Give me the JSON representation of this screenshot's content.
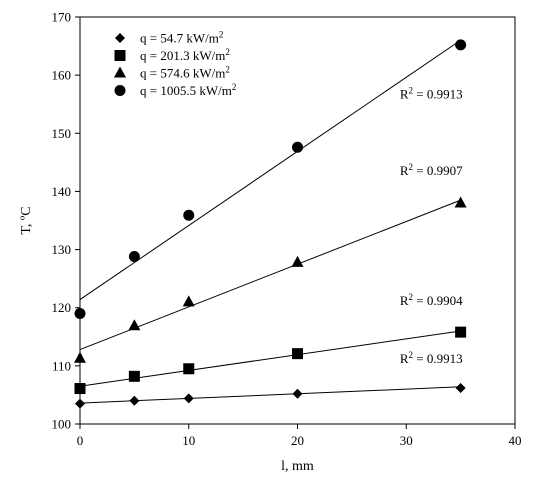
{
  "chart_data": {
    "type": "scatter",
    "xlabel": "l, mm",
    "ylabel": "T, ºC",
    "xlim": [
      0,
      40
    ],
    "ylim": [
      100,
      170
    ],
    "xticks": [
      0,
      10,
      20,
      30,
      40
    ],
    "yticks": [
      100,
      110,
      120,
      130,
      140,
      150,
      160,
      170
    ],
    "grid": false,
    "legend_position": "top-left",
    "series": [
      {
        "name": "q = 54.7 kW/m2",
        "legend_parts": [
          "q = 54.7 kW/m",
          "2"
        ],
        "marker": "diamond",
        "x": [
          0,
          5,
          10,
          20,
          35
        ],
        "y": [
          103.5,
          104.0,
          104.4,
          105.2,
          106.2
        ],
        "trendline": {
          "y0": 103.6,
          "y35": 106.4
        },
        "r2": "0.9913",
        "r2_anchor": [
          35,
          110.5
        ]
      },
      {
        "name": "q = 201.3 kW/m2",
        "legend_parts": [
          "q = 201.3 kW/m",
          "2"
        ],
        "marker": "square",
        "x": [
          0,
          5,
          10,
          20,
          35
        ],
        "y": [
          106.1,
          108.2,
          109.5,
          112.1,
          115.8
        ],
        "trendline": {
          "y0": 106.5,
          "y35": 116.0
        },
        "r2": "0.9904",
        "r2_anchor": [
          35,
          120.5
        ]
      },
      {
        "name": "q = 574.6 kW/m2",
        "legend_parts": [
          "q = 574.6 kW/m",
          "2"
        ],
        "marker": "triangle",
        "x": [
          0,
          5,
          10,
          20,
          35
        ],
        "y": [
          111.3,
          116.9,
          121.0,
          127.8,
          138.0
        ],
        "trendline": {
          "y0": 112.8,
          "y35": 138.5
        },
        "r2": "0.9907",
        "r2_anchor": [
          35,
          142.8
        ]
      },
      {
        "name": "q = 1005.5 kW/m2",
        "legend_parts": [
          "q = 1005.5 kW/m",
          "2"
        ],
        "marker": "circle",
        "x": [
          0,
          5,
          10,
          20,
          35
        ],
        "y": [
          119.0,
          128.8,
          135.9,
          147.6,
          165.2
        ],
        "trendline": {
          "y0": 121.4,
          "y35": 166.0
        },
        "r2": "0.9913",
        "r2_anchor": [
          35,
          156.0
        ]
      }
    ],
    "r2_prefix": "R",
    "r2_sup": "2",
    "r2_eq": " = "
  }
}
